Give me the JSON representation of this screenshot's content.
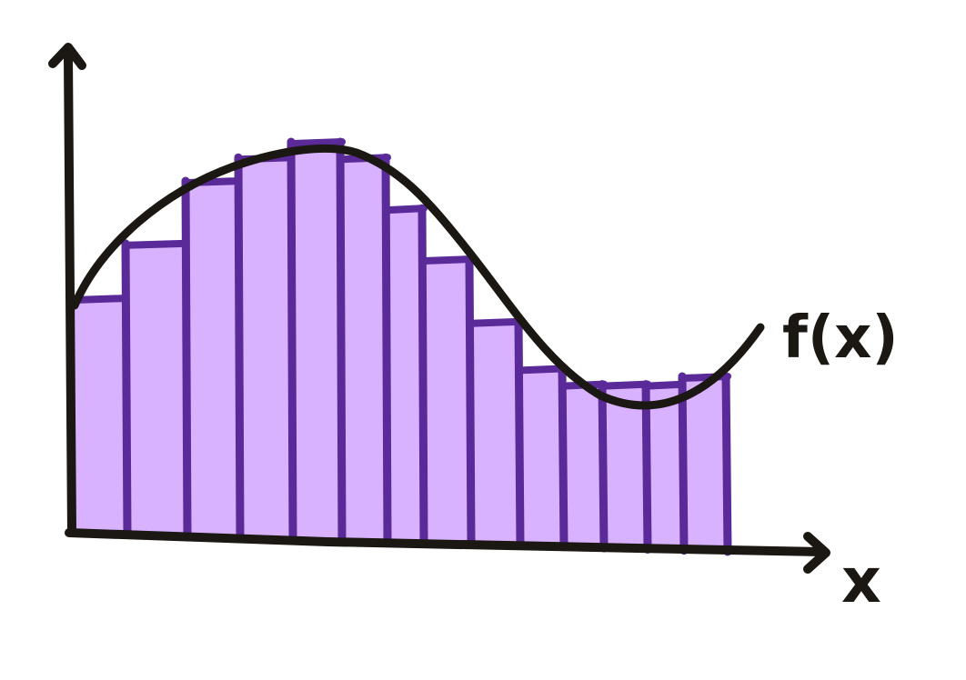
{
  "diagram": {
    "function_label": "f(x)",
    "axis_label_x": "x",
    "bars": [
      {
        "height": 0.6
      },
      {
        "height": 0.74
      },
      {
        "height": 0.9
      },
      {
        "height": 0.96
      },
      {
        "height": 1.0
      },
      {
        "height": 0.96
      },
      {
        "height": 0.83
      },
      {
        "height": 0.7
      },
      {
        "height": 0.54
      },
      {
        "height": 0.42
      },
      {
        "height": 0.38
      },
      {
        "height": 0.38
      },
      {
        "height": 0.38
      },
      {
        "height": 0.4
      }
    ],
    "colors": {
      "ink": "#1b1712",
      "bar_fill": "#d8b2ff",
      "bar_stroke": "#5a2a99",
      "background": "#ffffff"
    }
  }
}
